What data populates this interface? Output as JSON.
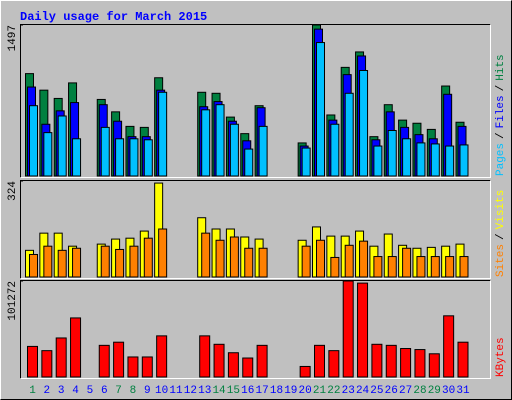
{
  "title": "Daily usage for March 2015",
  "legend_separator": "/",
  "chart_data": [
    {
      "type": "bar",
      "ylim": [
        0,
        1497
      ],
      "yticks": [
        1497
      ],
      "series": [
        {
          "name": "Pages",
          "color": "#00c0ff",
          "values": [
            697,
            430,
            595,
            369,
            0,
            482,
            369,
            369,
            359,
            830,
            0,
            0,
            656,
            707,
            513,
            267,
            492,
            0,
            0,
            277,
            1323,
            513,
            820,
            1046,
            297,
            451,
            369,
            328,
            318,
            297,
            308
          ]
        },
        {
          "name": "Files",
          "color": "#0000ff",
          "values": [
            882,
            513,
            646,
            728,
            0,
            707,
            543,
            390,
            390,
            851,
            0,
            0,
            687,
            738,
            543,
            349,
            677,
            0,
            0,
            297,
            1456,
            554,
            1005,
            1190,
            359,
            636,
            482,
            410,
            369,
            810,
            492
          ]
        },
        {
          "name": "Hits",
          "color": "#008040",
          "values": [
            1015,
            851,
            769,
            923,
            0,
            759,
            636,
            492,
            482,
            974,
            0,
            0,
            830,
            820,
            584,
            420,
            697,
            0,
            0,
            328,
            1497,
            605,
            1077,
            1230,
            390,
            707,
            554,
            523,
            462,
            892,
            533
          ]
        }
      ]
    },
    {
      "type": "bar",
      "ylim": [
        0,
        324
      ],
      "yticks": [
        324
      ],
      "series": [
        {
          "name": "Sites",
          "color": "#ff8000",
          "values": [
            76,
            104,
            90,
            97,
            0,
            104,
            93,
            104,
            131,
            162,
            0,
            0,
            148,
            124,
            135,
            97,
            97,
            0,
            0,
            104,
            124,
            66,
            107,
            121,
            69,
            69,
            97,
            69,
            69,
            69,
            69
          ]
        },
        {
          "name": "Visits",
          "color": "#ffff00",
          "values": [
            90,
            148,
            148,
            104,
            0,
            111,
            128,
            131,
            155,
            317,
            0,
            0,
            200,
            162,
            162,
            135,
            128,
            0,
            0,
            124,
            169,
            138,
            138,
            155,
            104,
            145,
            107,
            97,
            100,
            104,
            111
          ]
        }
      ]
    },
    {
      "type": "bar",
      "ylim": [
        0,
        101272
      ],
      "yticks": [
        101272
      ],
      "categories": [
        "1",
        "2",
        "3",
        "4",
        "5",
        "6",
        "7",
        "8",
        "9",
        "10",
        "11",
        "12",
        "13",
        "14",
        "15",
        "16",
        "17",
        "18",
        "19",
        "20",
        "21",
        "22",
        "23",
        "24",
        "25",
        "26",
        "27",
        "28",
        "29",
        "30",
        "31"
      ],
      "category_colors": [
        "#008040",
        "#0000ff",
        "#0000ff",
        "#0000ff",
        "#0000ff",
        "#0000ff",
        "#008040",
        "#008040",
        "#0000ff",
        "#0000ff",
        "#0000ff",
        "#0000ff",
        "#0000ff",
        "#008040",
        "#008040",
        "#0000ff",
        "#0000ff",
        "#0000ff",
        "#0000ff",
        "#0000ff",
        "#008040",
        "#008040",
        "#0000ff",
        "#0000ff",
        "#0000ff",
        "#0000ff",
        "#0000ff",
        "#008040",
        "#008040",
        "#0000ff",
        "#0000ff"
      ],
      "series": [
        {
          "name": "KBytes",
          "color": "#ff0000",
          "values": [
            32270,
            27800,
            41180,
            62320,
            0,
            33390,
            36720,
            21140,
            21140,
            43400,
            0,
            0,
            43400,
            34500,
            25600,
            20030,
            33390,
            0,
            0,
            11130,
            33390,
            27800,
            101272,
            99050,
            34500,
            33390,
            30050,
            28940,
            24490,
            64550,
            36720
          ]
        }
      ]
    }
  ]
}
